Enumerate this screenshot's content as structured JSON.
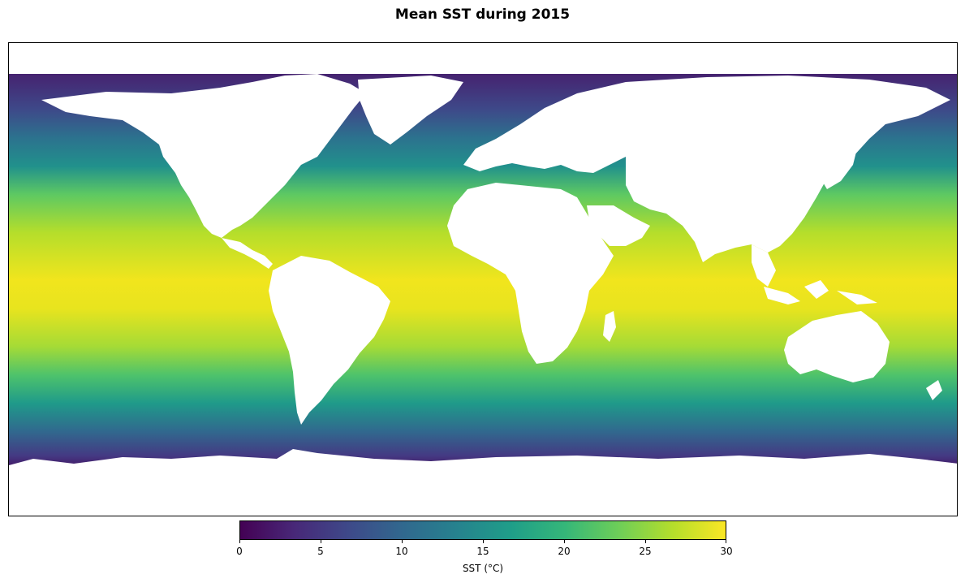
{
  "title": "Mean SST during 2015",
  "colorbar": {
    "label": "SST (°C)",
    "min": 0,
    "max": 30,
    "ticks": [
      "0",
      "5",
      "10",
      "15",
      "20",
      "25",
      "30"
    ],
    "colormap": "viridis",
    "stops": [
      "#440154",
      "#482878",
      "#3e4989",
      "#31688e",
      "#26828e",
      "#1f9e89",
      "#35b779",
      "#6ece58",
      "#b5de2b",
      "#fde725"
    ]
  },
  "map": {
    "projection": "plate-carree",
    "land_color": "#ffffff"
  }
}
